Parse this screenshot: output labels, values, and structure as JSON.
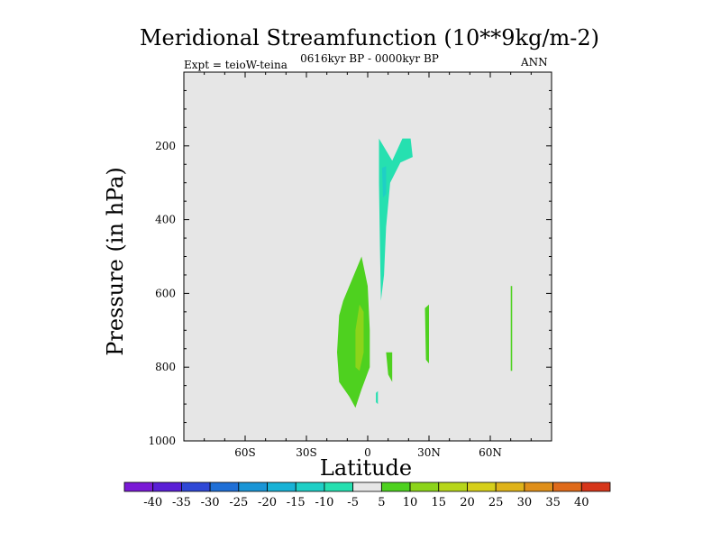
{
  "chart_data": {
    "type": "heatmap",
    "title": "Meridional Streamfunction (10**9kg/m-2)",
    "subtitle": "0616kyr BP - 0000kyr BP",
    "left_label": "Expt = teioW-teina",
    "right_label": "ANN",
    "xlabel": "Latitude",
    "ylabel": "Pressure (in hPa)",
    "xlim": [
      -90,
      90
    ],
    "ylim": [
      1000,
      0
    ],
    "x_ticks": [
      {
        "value": -60,
        "label": "60S"
      },
      {
        "value": -30,
        "label": "30S"
      },
      {
        "value": 0,
        "label": "0"
      },
      {
        "value": 30,
        "label": "30N"
      },
      {
        "value": 60,
        "label": "60N"
      }
    ],
    "y_ticks": [
      {
        "value": 200,
        "label": "200"
      },
      {
        "value": 400,
        "label": "400"
      },
      {
        "value": 600,
        "label": "600"
      },
      {
        "value": 800,
        "label": "800"
      },
      {
        "value": 1000,
        "label": "1000"
      }
    ],
    "background_color": "#e6e6e6",
    "colorbar": {
      "levels": [
        "-40",
        "-35",
        "-30",
        "-25",
        "-20",
        "-15",
        "-10",
        "-5",
        "5",
        "10",
        "15",
        "20",
        "25",
        "30",
        "35",
        "40"
      ],
      "colors": [
        "#7a1ad6",
        "#5a1fd6",
        "#2f48d6",
        "#1f6fd6",
        "#1a95d6",
        "#18b2d6",
        "#1fcfc6",
        "#26e0b0",
        "#e6e6e6",
        "#4ed11f",
        "#8cd41a",
        "#b7d61a",
        "#d6cf1a",
        "#dfb31a",
        "#df8f1a",
        "#df6a1a",
        "#d6361a"
      ]
    },
    "regions": [
      {
        "name": "negative-5-upper",
        "color": "#26e0b0",
        "level": "-5",
        "points": [
          [
            5.5,
            180
          ],
          [
            12,
            240
          ],
          [
            17,
            180
          ],
          [
            21,
            180
          ],
          [
            22,
            230
          ],
          [
            16,
            245
          ],
          [
            11,
            300
          ],
          [
            9,
            420
          ],
          [
            8,
            550
          ],
          [
            6.5,
            620
          ],
          [
            6,
            480
          ],
          [
            5.5,
            300
          ]
        ]
      },
      {
        "name": "negative-10-core",
        "color": "#1fcfc6",
        "level": "-10",
        "points": [
          [
            7,
            260
          ],
          [
            9,
            255
          ],
          [
            9,
            330
          ],
          [
            7.5,
            340
          ]
        ]
      },
      {
        "name": "negative-5-small",
        "color": "#26e0b0",
        "level": "-5",
        "points": [
          [
            4,
            870
          ],
          [
            5,
            865
          ],
          [
            5,
            900
          ],
          [
            4,
            895
          ]
        ]
      },
      {
        "name": "positive-5-main",
        "color": "#4ed11f",
        "level": "5",
        "points": [
          [
            -12,
            620
          ],
          [
            -3,
            500
          ],
          [
            0,
            580
          ],
          [
            1,
            700
          ],
          [
            1,
            800
          ],
          [
            -3,
            860
          ],
          [
            -6,
            910
          ],
          [
            -9,
            880
          ],
          [
            -14,
            840
          ],
          [
            -15,
            760
          ],
          [
            -14,
            660
          ]
        ]
      },
      {
        "name": "positive-10-core",
        "color": "#8cd41a",
        "level": "10",
        "points": [
          [
            -6,
            700
          ],
          [
            -4,
            630
          ],
          [
            -2,
            650
          ],
          [
            -2,
            760
          ],
          [
            -4,
            810
          ],
          [
            -6,
            800
          ]
        ]
      },
      {
        "name": "positive-5-small",
        "color": "#4ed11f",
        "level": "5",
        "points": [
          [
            9,
            760
          ],
          [
            12,
            760
          ],
          [
            12,
            840
          ],
          [
            10,
            820
          ]
        ]
      },
      {
        "name": "positive-5-30n",
        "color": "#4ed11f",
        "level": "5",
        "points": [
          [
            28,
            640
          ],
          [
            30,
            630
          ],
          [
            30,
            790
          ],
          [
            28.5,
            780
          ]
        ]
      },
      {
        "name": "positive-5-70n",
        "color": "#4ed11f",
        "level": "5",
        "points": [
          [
            70,
            580
          ],
          [
            70.7,
            580
          ],
          [
            70.7,
            810
          ],
          [
            70,
            810
          ]
        ]
      }
    ]
  }
}
